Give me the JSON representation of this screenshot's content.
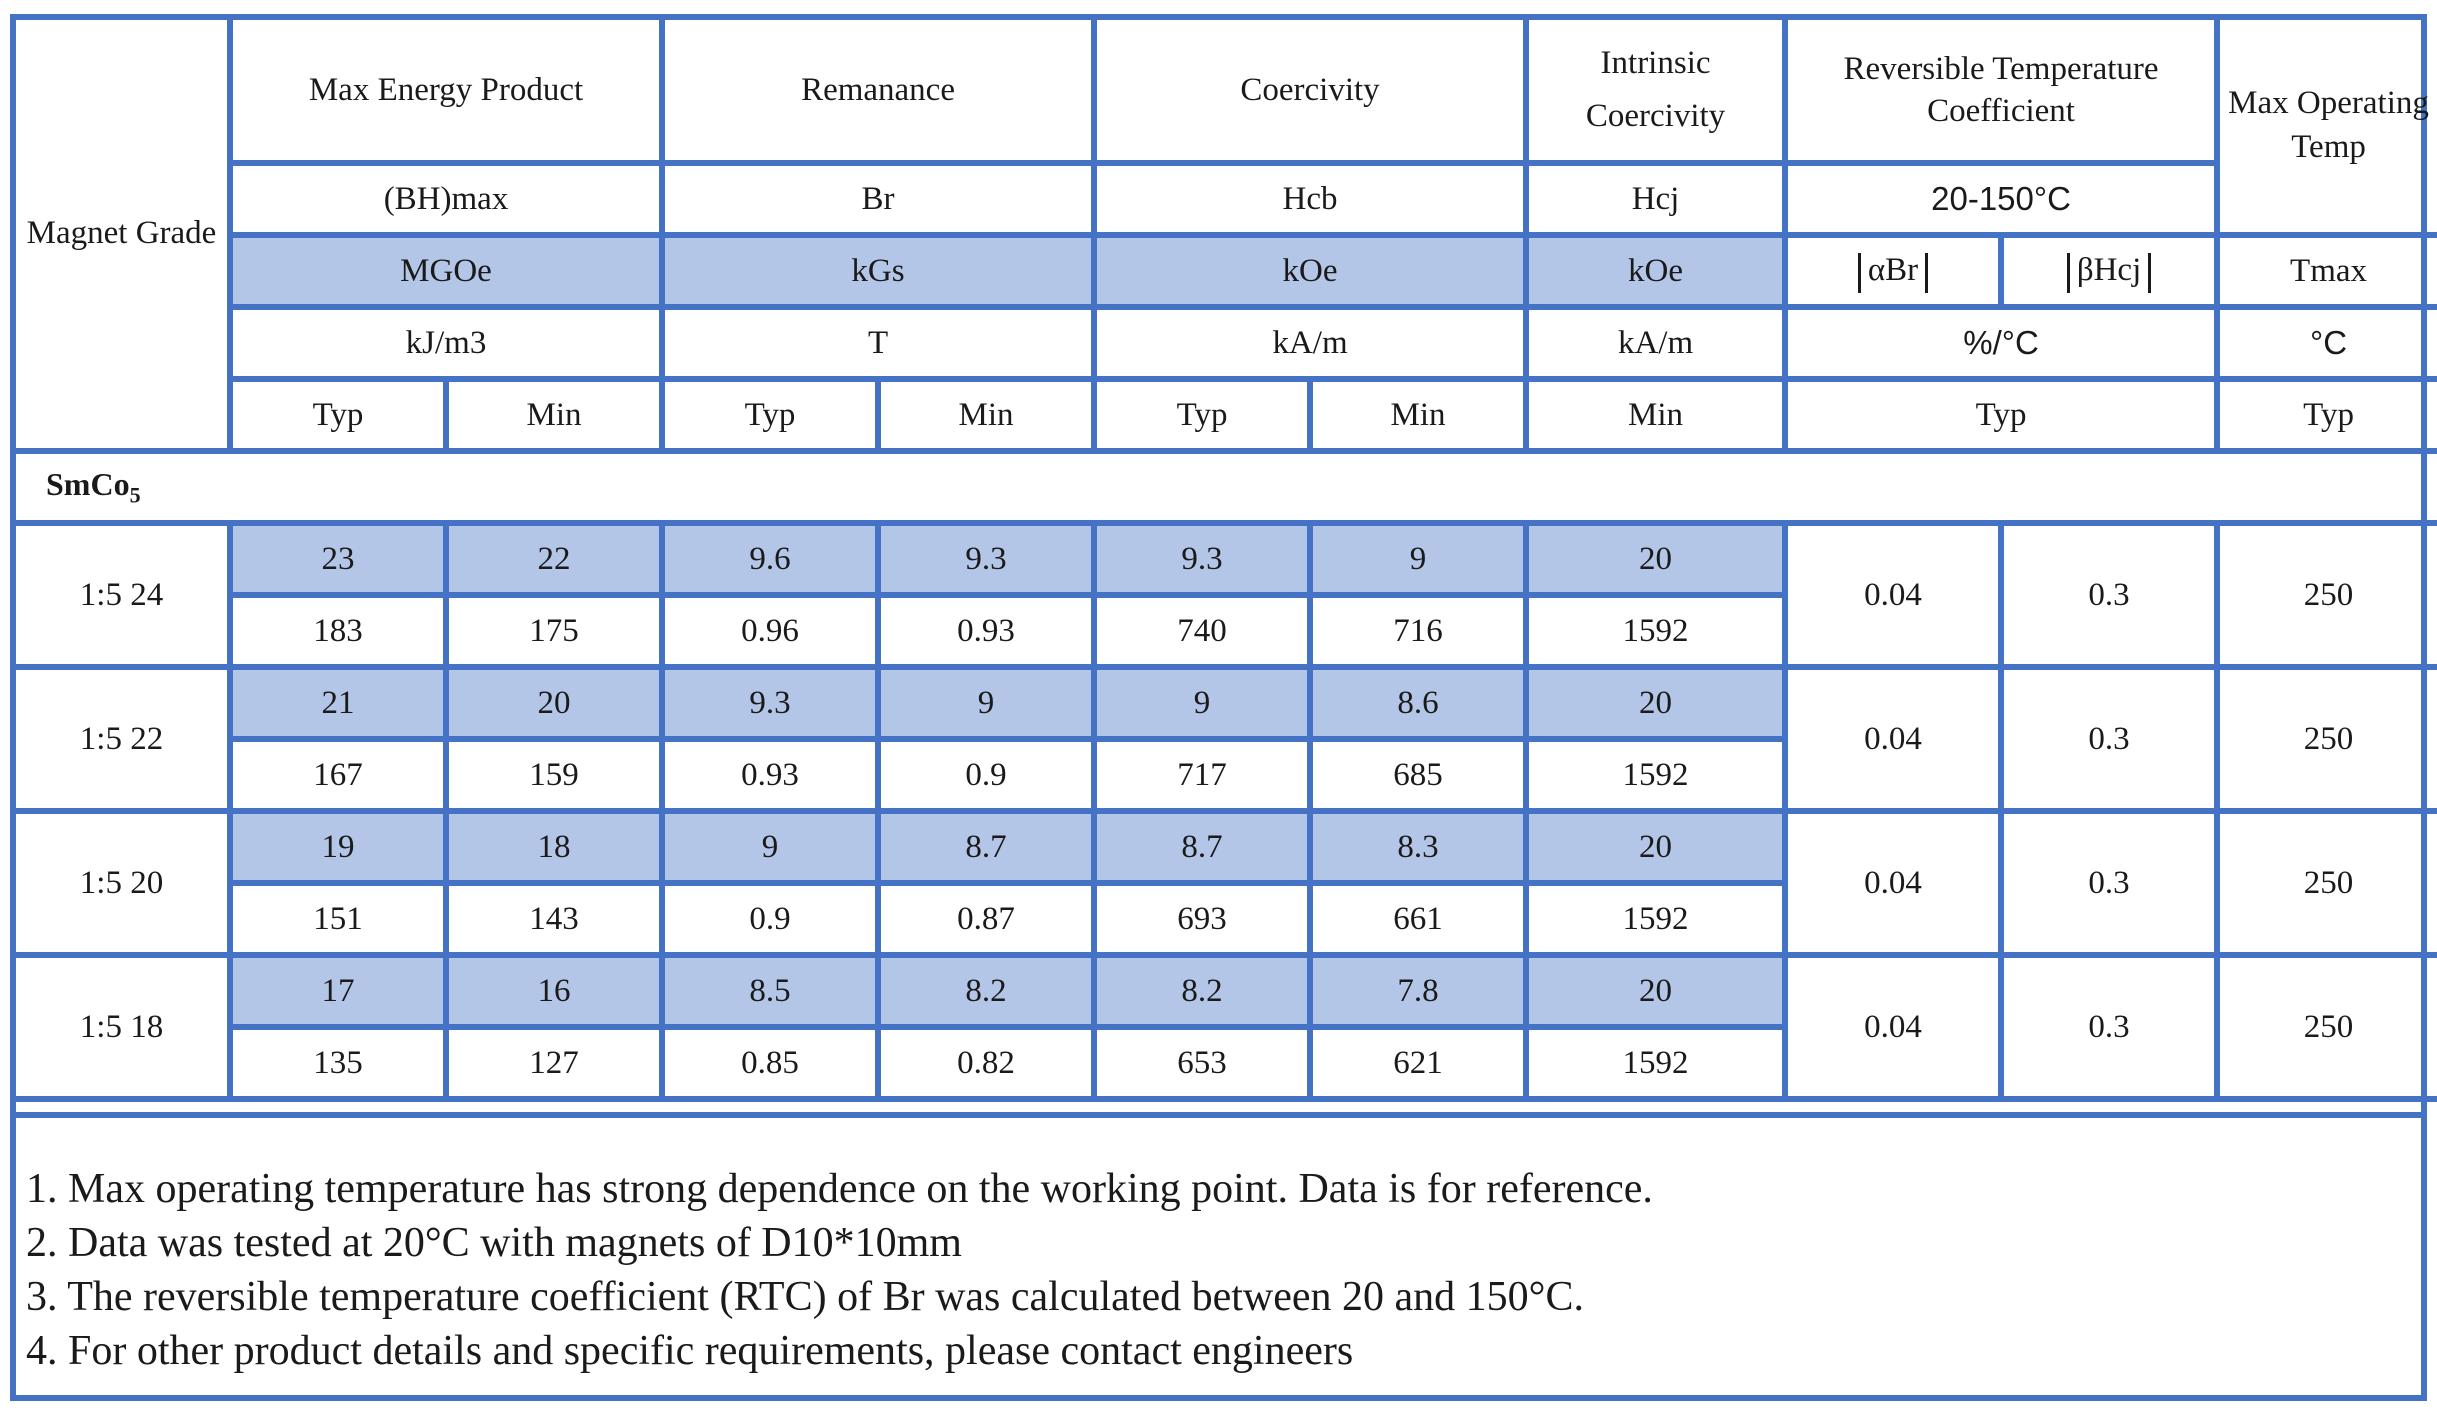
{
  "header": {
    "grade": "Magnet Grade",
    "groups": [
      {
        "name": "Max Energy Product",
        "symbol": "(BH)max",
        "unit1": "MGOe",
        "unit2": "kJ/m3"
      },
      {
        "name": "Remanance",
        "symbol": "Br",
        "unit1": "kGs",
        "unit2": "T"
      },
      {
        "name": "Coercivity",
        "symbol": "Hcb",
        "unit1": "kOe",
        "unit2": "kA/m"
      },
      {
        "name_line1": "Intrinsic",
        "name_line2": "Coercivity",
        "symbol": "Hcj",
        "unit1": "kOe",
        "unit2": "kA/m"
      },
      {
        "name": "Reversible Temperature Coefficient",
        "symbol": "20-150°C",
        "unit_a": "αBr",
        "unit_b": "βHcj",
        "unit2": "%/°C"
      },
      {
        "name": "Max Operating Temp",
        "unit1": "Tmax",
        "unit2": "°C"
      }
    ],
    "typ": "Typ",
    "min": "Min"
  },
  "section": {
    "base": "SmCo",
    "sub": "5"
  },
  "rows": [
    {
      "grade": "1:5 24",
      "kgs": [
        "23",
        "22",
        "9.6",
        "9.3",
        "9.3",
        "9",
        "20"
      ],
      "si": [
        "183",
        "175",
        "0.96",
        "0.93",
        "740",
        "716",
        "1592"
      ],
      "abr": "0.04",
      "bhcj": "0.3",
      "tmax": "250"
    },
    {
      "grade": "1:5 22",
      "kgs": [
        "21",
        "20",
        "9.3",
        "9",
        "9",
        "8.6",
        "20"
      ],
      "si": [
        "167",
        "159",
        "0.93",
        "0.9",
        "717",
        "685",
        "1592"
      ],
      "abr": "0.04",
      "bhcj": "0.3",
      "tmax": "250"
    },
    {
      "grade": "1:5 20",
      "kgs": [
        "19",
        "18",
        "9",
        "8.7",
        "8.7",
        "8.3",
        "20"
      ],
      "si": [
        "151",
        "143",
        "0.9",
        "0.87",
        "693",
        "661",
        "1592"
      ],
      "abr": "0.04",
      "bhcj": "0.3",
      "tmax": "250"
    },
    {
      "grade": "1:5 18",
      "kgs": [
        "17",
        "16",
        "8.5",
        "8.2",
        "8.2",
        "7.8",
        "20"
      ],
      "si": [
        "135",
        "127",
        "0.85",
        "0.82",
        "653",
        "621",
        "1592"
      ],
      "abr": "0.04",
      "bhcj": "0.3",
      "tmax": "250"
    }
  ],
  "notes": [
    "1. Max operating temperature has strong dependence on the working point. Data is for reference.",
    "2. Data was tested at 20°C with magnets of D10*10mm",
    "3. The reversible temperature coefficient (RTC) of Br was calculated between 20 and 150°C.",
    "4. For other product details and specific requirements, please contact engineers"
  ],
  "colors": {
    "border": "#4472c4",
    "highlight": "#b4c6e7"
  }
}
